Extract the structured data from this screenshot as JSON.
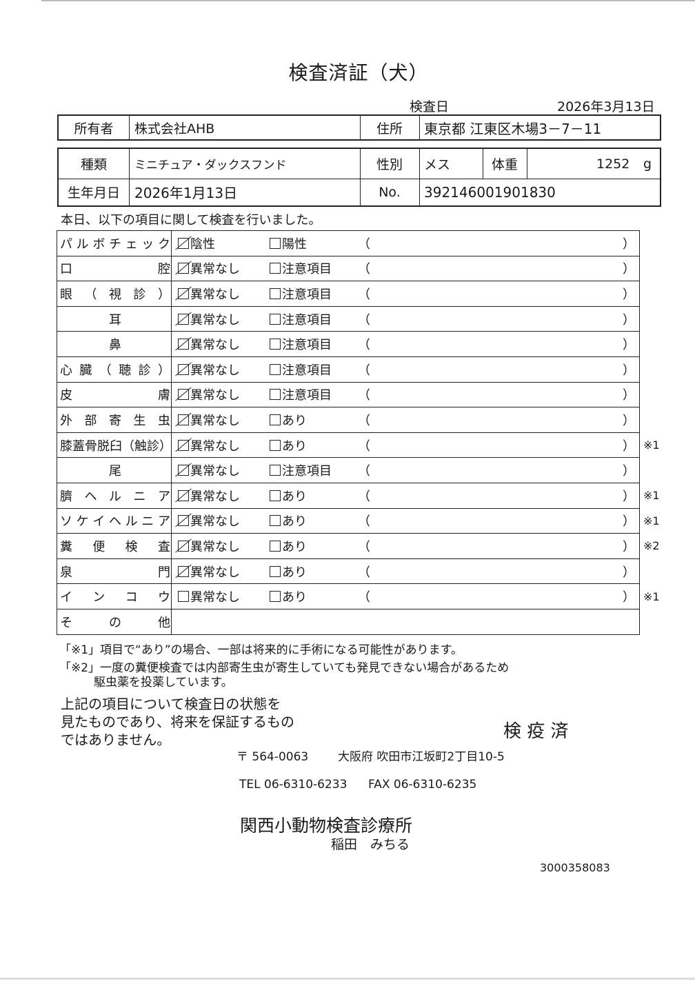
{
  "title": "検査済証（犬）",
  "exam_date": {
    "label": "検査日",
    "value": "2026年3月13日"
  },
  "owner": {
    "label": "所有者",
    "value": "株式会社AHB"
  },
  "address": {
    "label": "住所",
    "value": "東京都 江東区木場3－7－11"
  },
  "breed": {
    "label": "種類",
    "value": "ミニチュア・ダックスフンド"
  },
  "sex": {
    "label": "性別",
    "value": "メス"
  },
  "weight": {
    "label": "体重",
    "value": "1252",
    "unit": "g"
  },
  "birth": {
    "label": "生年月日",
    "value": "2026年1月13日"
  },
  "number": {
    "label": "No.",
    "value": "392146001901830"
  },
  "intro": "本日、以下の項目に関して検査を行いました。",
  "items": [
    {
      "label": [
        "パ",
        "ル",
        "ボ",
        "チ",
        "ェ",
        "ッ",
        "ク"
      ],
      "opt1": "陰性",
      "opt2": "陽性",
      "checked": true,
      "mark": ""
    },
    {
      "label": [
        "口",
        "腔"
      ],
      "opt1": "異常なし",
      "opt2": "注意項目",
      "checked": true,
      "mark": ""
    },
    {
      "label": [
        "眼",
        "（",
        "視",
        "診",
        "）"
      ],
      "opt1": "異常なし",
      "opt2": "注意項目",
      "checked": true,
      "mark": ""
    },
    {
      "label": [
        "耳"
      ],
      "opt1": "異常なし",
      "opt2": "注意項目",
      "checked": true,
      "mark": ""
    },
    {
      "label": [
        "鼻"
      ],
      "opt1": "異常なし",
      "opt2": "注意項目",
      "checked": true,
      "mark": ""
    },
    {
      "label": [
        "心",
        "臓",
        "（",
        "聴",
        "診",
        "）"
      ],
      "opt1": "異常なし",
      "opt2": "注意項目",
      "checked": true,
      "mark": ""
    },
    {
      "label": [
        "皮",
        "膚"
      ],
      "opt1": "異常なし",
      "opt2": "注意項目",
      "checked": true,
      "mark": ""
    },
    {
      "label": [
        "外",
        "部",
        "寄",
        "生",
        "虫"
      ],
      "opt1": "異常なし",
      "opt2": "あり",
      "checked": true,
      "mark": ""
    },
    {
      "label": [
        "膝蓋骨脱臼（触診）"
      ],
      "opt1": "異常なし",
      "opt2": "あり",
      "checked": true,
      "mark": "※1"
    },
    {
      "label": [
        "尾"
      ],
      "opt1": "異常なし",
      "opt2": "注意項目",
      "checked": true,
      "mark": ""
    },
    {
      "label": [
        "臍",
        "ヘ",
        "ル",
        "ニ",
        "ア"
      ],
      "opt1": "異常なし",
      "opt2": "あり",
      "checked": true,
      "mark": "※1"
    },
    {
      "label": [
        "ソ",
        "ケ",
        "イ",
        "ヘ",
        "ル",
        "ニ",
        "ア"
      ],
      "opt1": "異常なし",
      "opt2": "あり",
      "checked": true,
      "mark": "※1"
    },
    {
      "label": [
        "糞",
        "便",
        "検",
        "査"
      ],
      "opt1": "異常なし",
      "opt2": "あり",
      "checked": true,
      "mark": "※2"
    },
    {
      "label": [
        "泉",
        "門"
      ],
      "opt1": "異常なし",
      "opt2": "あり",
      "checked": true,
      "mark": ""
    },
    {
      "label": [
        "イ",
        "ン",
        "コ",
        "ウ"
      ],
      "opt1": "異常なし",
      "opt2": "あり",
      "checked": false,
      "mark": "※1"
    }
  ],
  "other_label": [
    "そ",
    "の",
    "他"
  ],
  "paren_open": "（",
  "paren_close": "）",
  "notes": [
    "「※1」項目で“あり”の場合、一部は将来的に手術になる可能性があります。",
    "「※2」一度の糞便検査では内部寄生虫が寄生していても発見できない場合があるため",
    "駆虫薬を投薬しています。"
  ],
  "statement": [
    "上記の項目について検査日の状態を",
    "見たものであり、将来を保証するもの",
    "ではありません。"
  ],
  "stamp": "検 疫 済",
  "clinic": {
    "postal": "〒 564-0063",
    "address": "大阪府 吹田市江坂町2丁目10-5",
    "tel": "TEL 06-6310-6233",
    "fax": "FAX 06-6310-6235",
    "name": "関西小動物検査診療所",
    "vet": "稲田　みちる"
  },
  "doc_code": "3000358083"
}
